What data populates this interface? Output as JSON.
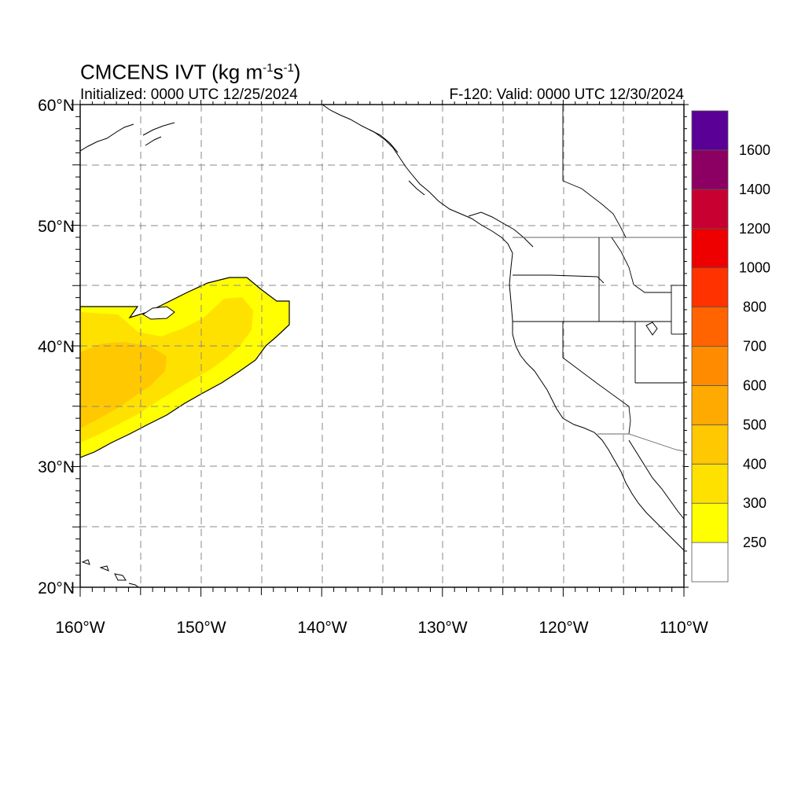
{
  "title": {
    "text": "CMCENS IVT (kg m",
    "sup1": "-1",
    "mid": "s",
    "sup2": "-1",
    "end": ")"
  },
  "subtitle": {
    "left": "Initialized: 0000 UTC 12/25/2024",
    "right": "F-120: Valid: 0000 UTC 12/30/2024"
  },
  "axes": {
    "lon_labels": [
      "160°W",
      "150°W",
      "140°W",
      "130°W",
      "120°W",
      "110°W"
    ],
    "lat_labels": [
      "20°N",
      "30°N",
      "40°N",
      "50°N",
      "60°N"
    ]
  },
  "colorbar": {
    "labels": [
      "250",
      "300",
      "400",
      "500",
      "600",
      "700",
      "800",
      "1000",
      "1200",
      "1400",
      "1600"
    ],
    "colors": [
      "#ffffff",
      "#ffff00",
      "#ffe100",
      "#ffc800",
      "#ffaa00",
      "#ff8c00",
      "#ff6400",
      "#ff3200",
      "#ee0000",
      "#c80032",
      "#8c0064",
      "#5a0096"
    ]
  },
  "ivt_field_colors": {
    "band_250_300": "#ffff00",
    "band_300_400": "#ffe100",
    "band_400_500": "#ffc800"
  }
}
